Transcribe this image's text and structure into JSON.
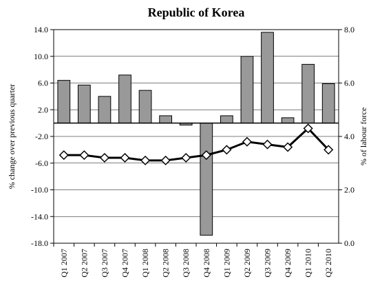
{
  "chart_data": {
    "type": "bar_line",
    "title": "Republic of Korea",
    "ylabel": "% change over previous quarter",
    "y2label": "% of labour force",
    "categories": [
      "Q1 2007",
      "Q2 2007",
      "Q3 2007",
      "Q4 2007",
      "Q1 2008",
      "Q2 2008",
      "Q3 2008",
      "Q4 2008",
      "Q1 2009",
      "Q2 2009",
      "Q3 2009",
      "Q4 2009",
      "Q1 2010",
      "Q2 2010"
    ],
    "series": [
      {
        "type": "bar",
        "color": "#999999",
        "values": [
          6.4,
          5.7,
          4.0,
          7.2,
          4.9,
          1.1,
          -0.3,
          -16.8,
          1.1,
          10.0,
          13.6,
          0.8,
          8.8,
          5.9
        ]
      },
      {
        "type": "line",
        "color": "#000000",
        "axis": "y2",
        "values": [
          3.3,
          3.3,
          3.2,
          3.2,
          3.1,
          3.1,
          3.2,
          3.3,
          3.5,
          3.8,
          3.7,
          3.6,
          4.3,
          3.5
        ]
      }
    ],
    "ylim": [
      -18,
      14
    ],
    "yticks": [
      {
        "value": -18,
        "label": "-18.0"
      },
      {
        "value": -14,
        "label": "-14.0"
      },
      {
        "value": -10,
        "label": "-10.0"
      },
      {
        "value": -6,
        "label": "-6.0"
      },
      {
        "value": -2,
        "label": "-2.0"
      },
      {
        "value": 2,
        "label": "2.0"
      },
      {
        "value": 6,
        "label": "6.0"
      },
      {
        "value": 10,
        "label": "10.0"
      },
      {
        "value": 14,
        "label": "14.0"
      }
    ],
    "y2lim": [
      0,
      8
    ],
    "y2ticks": [
      {
        "value": 0,
        "label": "0.0"
      },
      {
        "value": 2,
        "label": "2.0"
      },
      {
        "value": 4,
        "label": "4.0"
      },
      {
        "value": 6,
        "label": "6.0"
      },
      {
        "value": 8,
        "label": "8.0"
      }
    ],
    "grid": true
  }
}
